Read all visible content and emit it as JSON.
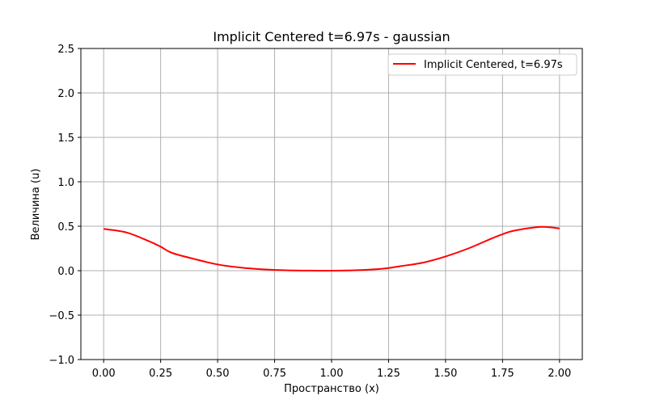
{
  "chart_data": {
    "type": "line",
    "title": "Implicit Centered t=6.97s - gaussian",
    "xlabel": "Пространство (x)",
    "ylabel": "Величина (u)",
    "xlim": [
      -0.1,
      2.1
    ],
    "ylim": [
      -1.0,
      2.5
    ],
    "xticks": [
      0.0,
      0.25,
      0.5,
      0.75,
      1.0,
      1.25,
      1.5,
      1.75,
      2.0
    ],
    "xtick_labels": [
      "0.00",
      "0.25",
      "0.50",
      "0.75",
      "1.00",
      "1.25",
      "1.50",
      "1.75",
      "2.00"
    ],
    "yticks": [
      -1.0,
      -0.5,
      0.0,
      0.5,
      1.0,
      1.5,
      2.0,
      2.5
    ],
    "ytick_labels": [
      "−1.0",
      "−0.5",
      "0.0",
      "0.5",
      "1.0",
      "1.5",
      "2.0",
      "2.5"
    ],
    "grid": true,
    "legend_position": "top-right",
    "series": [
      {
        "name": "Implicit Centered, t=6.97s",
        "color": "#ff0000",
        "x": [
          0.0,
          0.1,
          0.2,
          0.25,
          0.3,
          0.4,
          0.5,
          0.6,
          0.7,
          0.8,
          0.9,
          1.0,
          1.1,
          1.2,
          1.25,
          1.3,
          1.4,
          1.5,
          1.6,
          1.7,
          1.75,
          1.8,
          1.9,
          1.95,
          2.0
        ],
        "y": [
          0.47,
          0.43,
          0.33,
          0.27,
          0.2,
          0.13,
          0.07,
          0.035,
          0.015,
          0.005,
          0.001,
          0.0,
          0.004,
          0.017,
          0.03,
          0.05,
          0.09,
          0.16,
          0.25,
          0.36,
          0.41,
          0.45,
          0.49,
          0.49,
          0.475
        ]
      }
    ]
  }
}
